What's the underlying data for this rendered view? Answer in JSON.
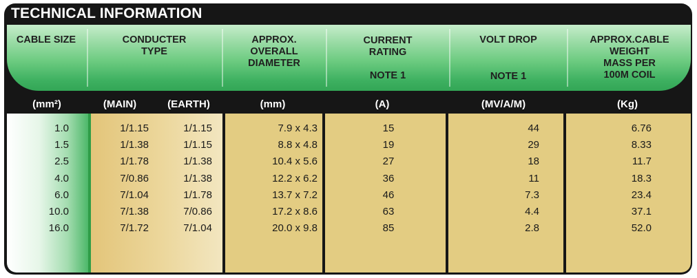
{
  "title": "TECHNICAL INFORMATION",
  "headers": [
    {
      "lines": [
        "CABLE SIZE"
      ]
    },
    {
      "lines": [
        "CONDUCTER",
        "TYPE"
      ]
    },
    {
      "lines": [
        "APPROX.",
        "OVERALL",
        "DIAMETER"
      ]
    },
    {
      "lines": [
        "CURRENT",
        "RATING",
        "",
        "NOTE 1"
      ]
    },
    {
      "lines": [
        "VOLT DROP",
        "",
        "",
        "NOTE 1"
      ]
    },
    {
      "lines": [
        "APPROX.CABLE",
        "WEIGHT",
        "MASS PER",
        "100M COIL"
      ]
    }
  ],
  "units": {
    "size": "(mm²)",
    "main": "(MAIN)",
    "earth": "(EARTH)",
    "diameter": "(mm)",
    "current": "(A)",
    "volt": "(MV/A/M)",
    "weight": "(Kg)"
  },
  "rows": [
    {
      "size": "1.0",
      "main": "1/1.15",
      "earth": "1/1.15",
      "diameter": "7.9 x 4.3",
      "current": "15",
      "volt": "44",
      "weight": "6.76"
    },
    {
      "size": "1.5",
      "main": "1/1.38",
      "earth": "1/1.15",
      "diameter": "8.8 x 4.8",
      "current": "19",
      "volt": "29",
      "weight": "8.33"
    },
    {
      "size": "2.5",
      "main": "1/1.78",
      "earth": "1/1.38",
      "diameter": "10.4 x 5.6",
      "current": "27",
      "volt": "18",
      "weight": "11.7"
    },
    {
      "size": "4.0",
      "main": "7/0.86",
      "earth": "1/1.38",
      "diameter": "12.2 x 6.2",
      "current": "36",
      "volt": "11",
      "weight": "18.3"
    },
    {
      "size": "6.0",
      "main": "7/1.04",
      "earth": "1/1.78",
      "diameter": "13.7 x 7.2",
      "current": "46",
      "volt": "7.3",
      "weight": "23.4"
    },
    {
      "size": "10.0",
      "main": "7/1.38",
      "earth": "7/0.86",
      "diameter": "17.2 x 8.6",
      "current": "63",
      "volt": "4.4",
      "weight": "37.1"
    },
    {
      "size": "16.0",
      "main": "7/1.72",
      "earth": "7/1.04",
      "diameter": "20.0 x 9.8",
      "current": "85",
      "volt": "2.8",
      "weight": "52.0"
    }
  ],
  "colors": {
    "frame": "#161616",
    "header_green": "#6ccb80",
    "tan": "#e3cc82",
    "size_green": "#2f9d48"
  }
}
